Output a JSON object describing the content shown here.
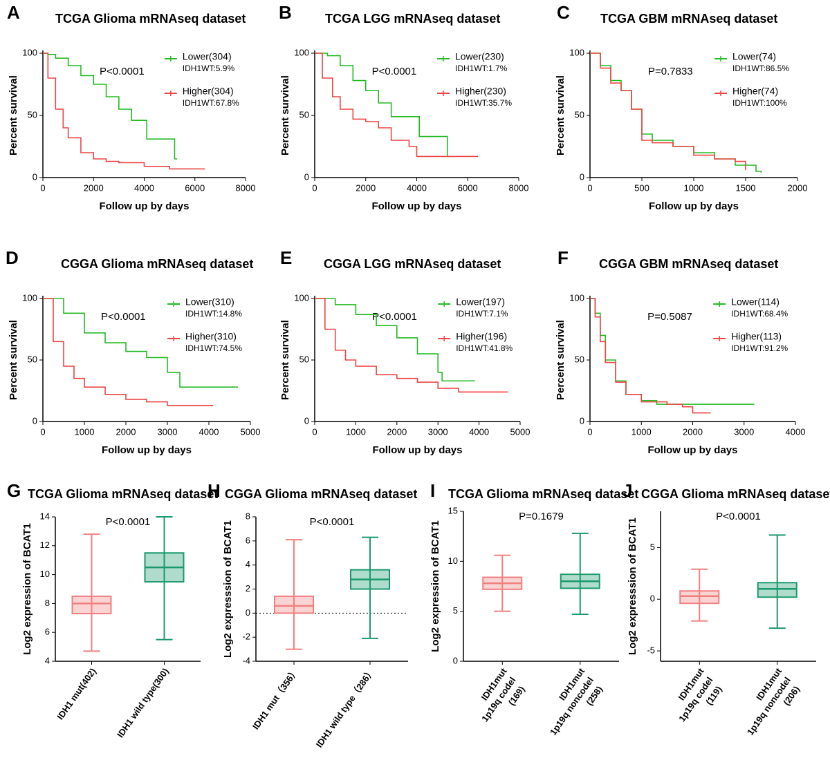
{
  "chart_data": [
    {
      "type": "survival",
      "panel": "A",
      "title": "TCGA Glioma mRNAseq dataset",
      "x_label": "Follow up by days",
      "y_label": "Percent survival",
      "pvalue": "P<0.0001",
      "xlim": [
        0,
        8000
      ],
      "xticks": [
        0,
        2000,
        4000,
        6000,
        8000
      ],
      "ylim": [
        0,
        100
      ],
      "yticks": [
        0,
        50,
        100
      ],
      "series": [
        {
          "name": "Lower(304)",
          "note": "IDH1WT:5.9%",
          "color": "#22bb22",
          "x": [
            0,
            200,
            500,
            1000,
            1500,
            2000,
            2500,
            3000,
            3500,
            4000,
            4100,
            5200,
            5300
          ],
          "values": [
            100,
            99,
            96,
            90,
            82,
            75,
            65,
            55,
            46,
            46,
            31,
            15,
            15
          ]
        },
        {
          "name": "Higher(304)",
          "note": "IDH1WT:67.8%",
          "color": "#ee4444",
          "x": [
            0,
            200,
            500,
            800,
            1000,
            1500,
            2000,
            2500,
            3000,
            4000,
            5000,
            6400
          ],
          "values": [
            100,
            80,
            55,
            40,
            32,
            20,
            15,
            13,
            12,
            9,
            7,
            7
          ]
        }
      ]
    },
    {
      "type": "survival",
      "panel": "B",
      "title": "TCGA LGG mRNAseq dataset",
      "x_label": "Follow up by days",
      "y_label": "Percent survival",
      "pvalue": "P<0.0001",
      "xlim": [
        0,
        8000
      ],
      "xticks": [
        0,
        2000,
        4000,
        6000,
        8000
      ],
      "ylim": [
        0,
        100
      ],
      "yticks": [
        0,
        50,
        100
      ],
      "series": [
        {
          "name": "Lower(230)",
          "note": "IDH1WT:1.7%",
          "color": "#22bb22",
          "x": [
            0,
            500,
            1000,
            1500,
            2000,
            2500,
            3000,
            4000,
            4100,
            5200,
            5300
          ],
          "values": [
            100,
            98,
            90,
            78,
            70,
            60,
            49,
            49,
            33,
            17,
            17
          ]
        },
        {
          "name": "Higher(230)",
          "note": "IDH1WT:35.7%",
          "color": "#ee4444",
          "x": [
            0,
            300,
            700,
            1000,
            1500,
            2000,
            2500,
            3000,
            3700,
            4000,
            6400
          ],
          "values": [
            100,
            80,
            65,
            55,
            47,
            45,
            40,
            30,
            25,
            17,
            17
          ]
        }
      ]
    },
    {
      "type": "survival",
      "panel": "C",
      "title": "TCGA GBM mRNAseq dataset",
      "x_label": "Follow up by days",
      "y_label": "Percent survival",
      "pvalue": "P=0.7833",
      "xlim": [
        0,
        2000
      ],
      "xticks": [
        0,
        500,
        1000,
        1500,
        2000
      ],
      "ylim": [
        0,
        100
      ],
      "yticks": [
        0,
        50,
        100
      ],
      "series": [
        {
          "name": "Lower(74)",
          "note": "IDH1WT:86.5%",
          "color": "#22bb22",
          "x": [
            0,
            100,
            200,
            300,
            400,
            500,
            600,
            800,
            1000,
            1200,
            1400,
            1600,
            1650
          ],
          "values": [
            100,
            90,
            78,
            70,
            55,
            35,
            30,
            25,
            20,
            15,
            10,
            5,
            4
          ]
        },
        {
          "name": "Higher(74)",
          "note": "IDH1WT:100%",
          "color": "#ee4444",
          "x": [
            0,
            100,
            200,
            300,
            400,
            500,
            600,
            800,
            1000,
            1200,
            1400,
            1500
          ],
          "values": [
            100,
            88,
            76,
            70,
            55,
            30,
            28,
            25,
            18,
            15,
            13,
            6
          ]
        }
      ]
    },
    {
      "type": "survival",
      "panel": "D",
      "title": "CGGA Glioma mRNAseq dataset",
      "x_label": "Follow up by days",
      "y_label": "Percent survival",
      "pvalue": "P<0.0001",
      "xlim": [
        0,
        5000
      ],
      "xticks": [
        0,
        1000,
        2000,
        3000,
        4000,
        5000
      ],
      "ylim": [
        0,
        100
      ],
      "yticks": [
        0,
        50,
        100
      ],
      "series": [
        {
          "name": "Lower(310)",
          "note": "IDH1WT:14.8%",
          "color": "#22bb22",
          "x": [
            0,
            500,
            1000,
            1500,
            2000,
            2500,
            3000,
            3300,
            4700
          ],
          "values": [
            100,
            88,
            72,
            64,
            57,
            52,
            40,
            28,
            28
          ]
        },
        {
          "name": "Higher(310)",
          "note": "IDH1WT:74.5%",
          "color": "#ee4444",
          "x": [
            0,
            250,
            500,
            750,
            1000,
            1500,
            2000,
            2500,
            3000,
            4100
          ],
          "values": [
            100,
            65,
            45,
            35,
            28,
            22,
            18,
            16,
            13,
            13
          ]
        }
      ]
    },
    {
      "type": "survival",
      "panel": "E",
      "title": "CGGA LGG mRNAseq dataset",
      "x_label": "Follow up by days",
      "y_label": "Percent survival",
      "pvalue": "P<0.0001",
      "xlim": [
        0,
        5000
      ],
      "xticks": [
        0,
        1000,
        2000,
        3000,
        4000,
        5000
      ],
      "ylim": [
        0,
        100
      ],
      "yticks": [
        0,
        50,
        100
      ],
      "series": [
        {
          "name": "Lower(197)",
          "note": "IDH1WT:7.1%",
          "color": "#22bb22",
          "x": [
            0,
            500,
            1000,
            1500,
            2000,
            2500,
            3000,
            3100,
            3900
          ],
          "values": [
            100,
            95,
            87,
            78,
            68,
            55,
            40,
            33,
            33
          ]
        },
        {
          "name": "Higher(196)",
          "note": "IDH1WT:41.8%",
          "color": "#ee4444",
          "x": [
            0,
            250,
            500,
            750,
            1000,
            1500,
            2000,
            2500,
            3000,
            3500,
            4700
          ],
          "values": [
            100,
            75,
            58,
            50,
            45,
            38,
            35,
            32,
            27,
            24,
            24
          ]
        }
      ]
    },
    {
      "type": "survival",
      "panel": "F",
      "title": "CGGA GBM mRNAseq dataset",
      "x_label": "Follow up by days",
      "y_label": "Percent survival",
      "pvalue": "P=0.5087",
      "xlim": [
        0,
        4000
      ],
      "xticks": [
        0,
        1000,
        2000,
        3000,
        4000
      ],
      "ylim": [
        0,
        100
      ],
      "yticks": [
        0,
        50,
        100
      ],
      "series": [
        {
          "name": "Lower(114)",
          "note": "IDH1WT:68.4%",
          "color": "#22bb22",
          "x": [
            0,
            100,
            200,
            300,
            500,
            700,
            1000,
            1300,
            3200
          ],
          "values": [
            100,
            88,
            70,
            50,
            33,
            22,
            17,
            14,
            14
          ]
        },
        {
          "name": "Higher(113)",
          "note": "IDH1WT:91.2%",
          "color": "#ee4444",
          "x": [
            0,
            100,
            200,
            300,
            500,
            700,
            1000,
            1500,
            1800,
            2000,
            2350
          ],
          "values": [
            100,
            85,
            65,
            48,
            32,
            22,
            16,
            14,
            12,
            7,
            7
          ]
        }
      ]
    },
    {
      "type": "box",
      "panel": "G",
      "title": "TCGA Glioma mRNAseq dataset",
      "y_label": "Log2 expression of BCAT1",
      "pvalue": "P<0.0001",
      "ylim": [
        4,
        14
      ],
      "yticks": [
        4,
        6,
        8,
        10,
        12,
        14
      ],
      "zero_line": false,
      "series": [
        {
          "name": [
            "IDH1 mut(402)"
          ],
          "color": "#f08080",
          "min": 4.7,
          "q1": 7.3,
          "median": 8.0,
          "q3": 8.5,
          "max": 12.8
        },
        {
          "name": [
            "IDH1 wild type(300)"
          ],
          "color": "#1a9a6c",
          "min": 5.5,
          "q1": 9.5,
          "median": 10.5,
          "q3": 11.5,
          "max": 14.0
        }
      ]
    },
    {
      "type": "box",
      "panel": "H",
      "title": "CGGA Glioma mRNAseq dataset",
      "y_label": "Log2 expresssion of BCAT1",
      "pvalue": "P<0.0001",
      "ylim": [
        -4,
        8
      ],
      "yticks": [
        -4,
        -2,
        0,
        2,
        4,
        6,
        8
      ],
      "zero_line": true,
      "series": [
        {
          "name": [
            "IDH1 mut（356）"
          ],
          "color": "#f08080",
          "min": -3.0,
          "q1": 0.0,
          "median": 0.6,
          "q3": 1.4,
          "max": 6.1
        },
        {
          "name": [
            "IDH1 wild type（286）"
          ],
          "color": "#1a9a6c",
          "min": -2.1,
          "q1": 2.0,
          "median": 2.8,
          "q3": 3.6,
          "max": 6.3
        }
      ]
    },
    {
      "type": "box",
      "panel": "I",
      "title": "TCGA Glioma mRNAseq dataset",
      "y_label": "Log2 expression of BCAT1",
      "pvalue": "P=0.1679",
      "ylim": [
        0,
        15
      ],
      "yticks": [
        0,
        5,
        10,
        15
      ],
      "zero_line": false,
      "series": [
        {
          "name": [
            "IDH1mut",
            "1p19q codel",
            "(169)"
          ],
          "color": "#f08080",
          "min": 5.0,
          "q1": 7.2,
          "median": 7.8,
          "q3": 8.4,
          "max": 10.6
        },
        {
          "name": [
            "IDH1mut",
            "1p19q noncodel",
            "(258)"
          ],
          "color": "#1a9a6c",
          "min": 4.7,
          "q1": 7.3,
          "median": 8.0,
          "q3": 8.7,
          "max": 12.8
        }
      ]
    },
    {
      "type": "box",
      "panel": "J",
      "title": "CGGA Glioma mRNAseq dataset",
      "y_label": "Log2 expresssion of BCAT1",
      "pvalue": "P<0.0001",
      "ylim": [
        -6,
        8.5
      ],
      "yticks": [
        -5,
        0,
        5
      ],
      "zero_line": false,
      "series": [
        {
          "name": [
            "IDH1mut",
            "1p19q codel",
            "(119)"
          ],
          "color": "#f08080",
          "min": -2.1,
          "q1": -0.4,
          "median": 0.3,
          "q3": 0.8,
          "max": 2.9
        },
        {
          "name": [
            "IDH1mut",
            "1p19q noncodel",
            "(206)"
          ],
          "color": "#1a9a6c",
          "min": -2.8,
          "q1": 0.2,
          "median": 1.0,
          "q3": 1.6,
          "max": 6.2
        }
      ]
    }
  ]
}
